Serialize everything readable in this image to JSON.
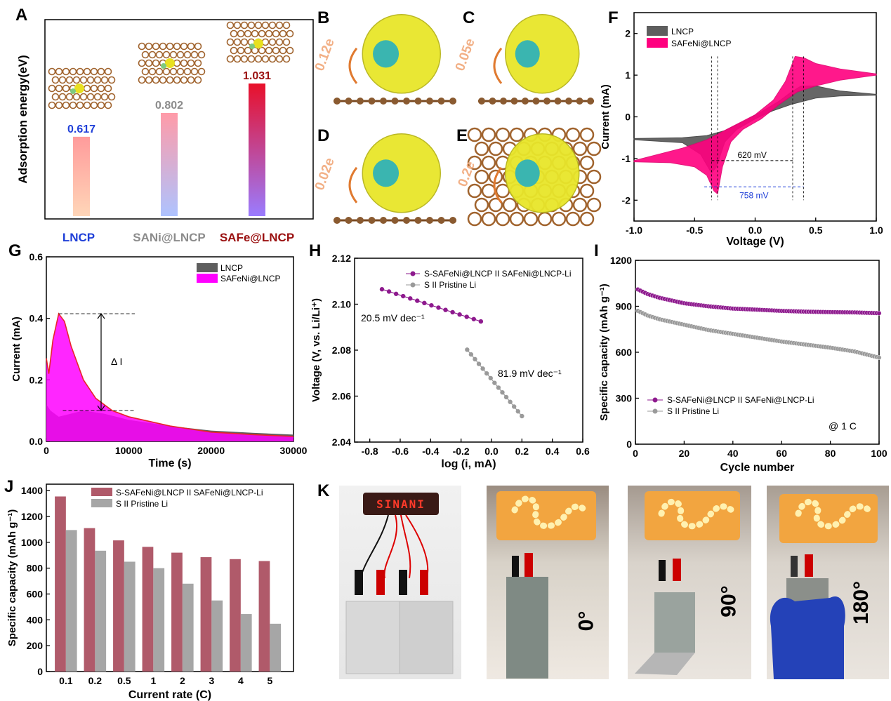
{
  "panel_labels": [
    "A",
    "B",
    "C",
    "D",
    "E",
    "F",
    "G",
    "H",
    "I",
    "J",
    "K"
  ],
  "colors": {
    "lncp": "#5e5e5e",
    "safeni": "#ff007f",
    "magenta_fill": "#ff00ff",
    "purple": "#8e1a8e",
    "gray_series": "#9a9a9a",
    "bar_red": "#b05a6a",
    "bar_gray": "#a6a6a6",
    "blue_label": "#1f3fd8",
    "dark_red_label": "#9a1010"
  },
  "panelA": {
    "ylabel": "Adsorption  energy(eV)",
    "bars": [
      {
        "name": "LNCP",
        "value": "0.617",
        "v": 0.617,
        "label_color": "#1f3fd8"
      },
      {
        "name": "SANi@LNCP",
        "value": "0.802",
        "v": 0.802,
        "label_color": "#8c8c8c"
      },
      {
        "name": "SAFe@LNCP",
        "value": "1.031",
        "v": 1.031,
        "label_color": "#9a1010"
      }
    ]
  },
  "charge_labels": {
    "B": "0.12e",
    "C": "0.05e",
    "D": "0.02e",
    "E": "0.2e"
  },
  "chart_data": [
    {
      "id": "F",
      "type": "area",
      "xlabel": "Voltage (V)",
      "ylabel": "Current (mA)",
      "xlim": [
        -1.0,
        1.0
      ],
      "ylim": [
        -2.5,
        2.5
      ],
      "xticks": [
        "-1.0",
        "-0.5",
        "0.0",
        "0.5",
        "1.0"
      ],
      "yticks": [
        "-2",
        "-1",
        "0",
        "1",
        "2"
      ],
      "legend": [
        "LNCP",
        "SAFeNi@LNCP"
      ],
      "legend_position": "top-left",
      "annotations": [
        "620 mV",
        "758 mV"
      ],
      "series": [
        {
          "name": "LNCP",
          "upper": [
            [
              -1.0,
              -0.52
            ],
            [
              -0.6,
              -0.5
            ],
            [
              -0.4,
              -0.45
            ],
            [
              -0.25,
              -0.33
            ],
            [
              -0.1,
              -0.12
            ],
            [
              0.05,
              0.12
            ],
            [
              0.2,
              0.38
            ],
            [
              0.3,
              0.6
            ],
            [
              0.38,
              0.74
            ],
            [
              0.5,
              0.74
            ],
            [
              0.7,
              0.62
            ],
            [
              1.0,
              0.54
            ]
          ],
          "lower": [
            [
              1.0,
              0.52
            ],
            [
              0.7,
              0.5
            ],
            [
              0.5,
              0.45
            ],
            [
              0.3,
              0.3
            ],
            [
              0.15,
              0.15
            ],
            [
              0.0,
              -0.05
            ],
            [
              -0.15,
              -0.3
            ],
            [
              -0.25,
              -0.6
            ],
            [
              -0.32,
              -1.2
            ],
            [
              -0.36,
              -1.35
            ],
            [
              -0.45,
              -0.9
            ],
            [
              -0.6,
              -0.62
            ],
            [
              -1.0,
              -0.55
            ]
          ]
        },
        {
          "name": "SAFeNi@LNCP",
          "upper": [
            [
              -1.0,
              -1.05
            ],
            [
              -0.6,
              -0.75
            ],
            [
              -0.4,
              -0.55
            ],
            [
              -0.2,
              -0.25
            ],
            [
              0.0,
              0.05
            ],
            [
              0.15,
              0.4
            ],
            [
              0.25,
              0.85
            ],
            [
              0.33,
              1.45
            ],
            [
              0.4,
              1.42
            ],
            [
              0.5,
              1.28
            ],
            [
              0.7,
              1.15
            ],
            [
              1.0,
              1.03
            ]
          ],
          "lower": [
            [
              1.0,
              1.0
            ],
            [
              0.7,
              0.88
            ],
            [
              0.5,
              0.74
            ],
            [
              0.35,
              0.6
            ],
            [
              0.2,
              0.3
            ],
            [
              0.05,
              -0.05
            ],
            [
              -0.1,
              -0.3
            ],
            [
              -0.2,
              -0.6
            ],
            [
              -0.27,
              -1.2
            ],
            [
              -0.31,
              -1.85
            ],
            [
              -0.34,
              -1.78
            ],
            [
              -0.4,
              -1.4
            ],
            [
              -0.5,
              -1.2
            ],
            [
              -0.7,
              -1.1
            ],
            [
              -1.0,
              -1.08
            ]
          ]
        }
      ]
    },
    {
      "id": "G",
      "type": "area",
      "xlabel": "Time (s)",
      "ylabel": "Current (mA)",
      "xlim": [
        0,
        30000
      ],
      "ylim": [
        0,
        0.6
      ],
      "xticks": [
        "0",
        "10000",
        "20000",
        "30000"
      ],
      "yticks": [
        "0.0",
        "0.2",
        "0.4",
        "0.6"
      ],
      "legend": [
        "LNCP",
        "SAFeNi@LNCP"
      ],
      "legend_position": "top-right",
      "annotations": [
        "Δ I"
      ],
      "series": [
        {
          "name": "LNCP",
          "points": [
            [
              0,
              0.12
            ],
            [
              500,
              0.1
            ],
            [
              1500,
              0.08
            ],
            [
              3000,
              0.09
            ],
            [
              4500,
              0.1
            ],
            [
              7000,
              0.09
            ],
            [
              10000,
              0.07
            ],
            [
              15000,
              0.05
            ],
            [
              20000,
              0.035
            ],
            [
              25000,
              0.028
            ],
            [
              30000,
              0.022
            ]
          ]
        },
        {
          "name": "SAFeNi@LNCP",
          "points": [
            [
              0,
              0.27
            ],
            [
              300,
              0.22
            ],
            [
              800,
              0.33
            ],
            [
              1500,
              0.415
            ],
            [
              2200,
              0.39
            ],
            [
              3000,
              0.31
            ],
            [
              4500,
              0.2
            ],
            [
              6000,
              0.14
            ],
            [
              8000,
              0.1
            ],
            [
              10000,
              0.08
            ],
            [
              15000,
              0.05
            ],
            [
              20000,
              0.03
            ],
            [
              25000,
              0.022
            ],
            [
              30000,
              0.016
            ]
          ]
        }
      ]
    },
    {
      "id": "H",
      "type": "line",
      "xlabel": "log (i, mA)",
      "ylabel": "Voltage (V, vs. Li/Li⁺)",
      "xlim": [
        -0.9,
        0.6
      ],
      "ylim": [
        2.04,
        2.12
      ],
      "xticks": [
        "-0.8",
        "-0.6",
        "-0.4",
        "-0.2",
        "0.0",
        "0.2",
        "0.4",
        "0.6"
      ],
      "yticks": [
        "2.04",
        "2.06",
        "2.08",
        "2.10",
        "2.12"
      ],
      "legend": [
        "S-SAFeNi@LNCP II SAFeNi@LNCP-Li",
        "S II Pristine Li"
      ],
      "legend_position": "top-right",
      "annotations": [
        "20.5 mV dec⁻¹",
        "81.9 mV dec⁻¹"
      ],
      "series": [
        {
          "name": "S-SAFeNi@LNCP II SAFeNi@LNCP-Li",
          "x0": -0.72,
          "x1": -0.07,
          "y0": 2.1065,
          "y1": 2.0925,
          "n": 15
        },
        {
          "name": "S II Pristine Li",
          "x0": -0.16,
          "x1": 0.2,
          "y0": 2.0802,
          "y1": 2.0513,
          "n": 15
        }
      ]
    },
    {
      "id": "I",
      "type": "scatter",
      "xlabel": "Cycle number",
      "ylabel": "Specific capacity (mAh g⁻¹)",
      "xlim": [
        0,
        100
      ],
      "ylim": [
        0,
        1200
      ],
      "xticks": [
        "0",
        "20",
        "40",
        "60",
        "80",
        "100"
      ],
      "yticks": [
        "0",
        "300",
        "600",
        "900",
        "1200"
      ],
      "legend": [
        "S-SAFeNi@LNCP II SAFeNi@LNCP-Li",
        "S II Pristine Li"
      ],
      "legend_position": "bottom-left",
      "annotations": [
        "@ 1 C"
      ],
      "series": [
        {
          "name": "S-SAFeNi@LNCP II SAFeNi@LNCP-Li",
          "points": [
            [
              1,
              1010
            ],
            [
              5,
              980
            ],
            [
              10,
              955
            ],
            [
              20,
              920
            ],
            [
              30,
              900
            ],
            [
              40,
              885
            ],
            [
              50,
              878
            ],
            [
              60,
              870
            ],
            [
              70,
              865
            ],
            [
              80,
              862
            ],
            [
              90,
              860
            ],
            [
              100,
              855
            ]
          ]
        },
        {
          "name": "S II Pristine Li",
          "points": [
            [
              1,
              870
            ],
            [
              5,
              840
            ],
            [
              10,
              815
            ],
            [
              20,
              780
            ],
            [
              30,
              745
            ],
            [
              40,
              720
            ],
            [
              50,
              695
            ],
            [
              60,
              670
            ],
            [
              70,
              650
            ],
            [
              80,
              630
            ],
            [
              90,
              605
            ],
            [
              100,
              565
            ]
          ]
        }
      ]
    },
    {
      "id": "J",
      "type": "bar",
      "xlabel": "Current rate (C)",
      "ylabel": "Specific capacity (mAh g⁻¹)",
      "ylim": [
        0,
        1450
      ],
      "yticks": [
        "0",
        "200",
        "400",
        "600",
        "800",
        "1000",
        "1200",
        "1400"
      ],
      "categories": [
        "0.1",
        "0.2",
        "0.5",
        "1",
        "2",
        "3",
        "4",
        "5"
      ],
      "legend": [
        "S-SAFeNi@LNCP II SAFeNi@LNCP-Li",
        "S II Pristine Li"
      ],
      "legend_position": "top-right",
      "series": [
        {
          "name": "S-SAFeNi@LNCP II SAFeNi@LNCP-Li",
          "values": [
            1355,
            1110,
            1015,
            965,
            920,
            885,
            870,
            855
          ]
        },
        {
          "name": "S II Pristine Li",
          "values": [
            1095,
            935,
            850,
            800,
            680,
            550,
            445,
            370
          ]
        }
      ]
    }
  ],
  "panelK": {
    "led_text": "SINANI",
    "angles": [
      "0°",
      "90°",
      "180°"
    ]
  }
}
